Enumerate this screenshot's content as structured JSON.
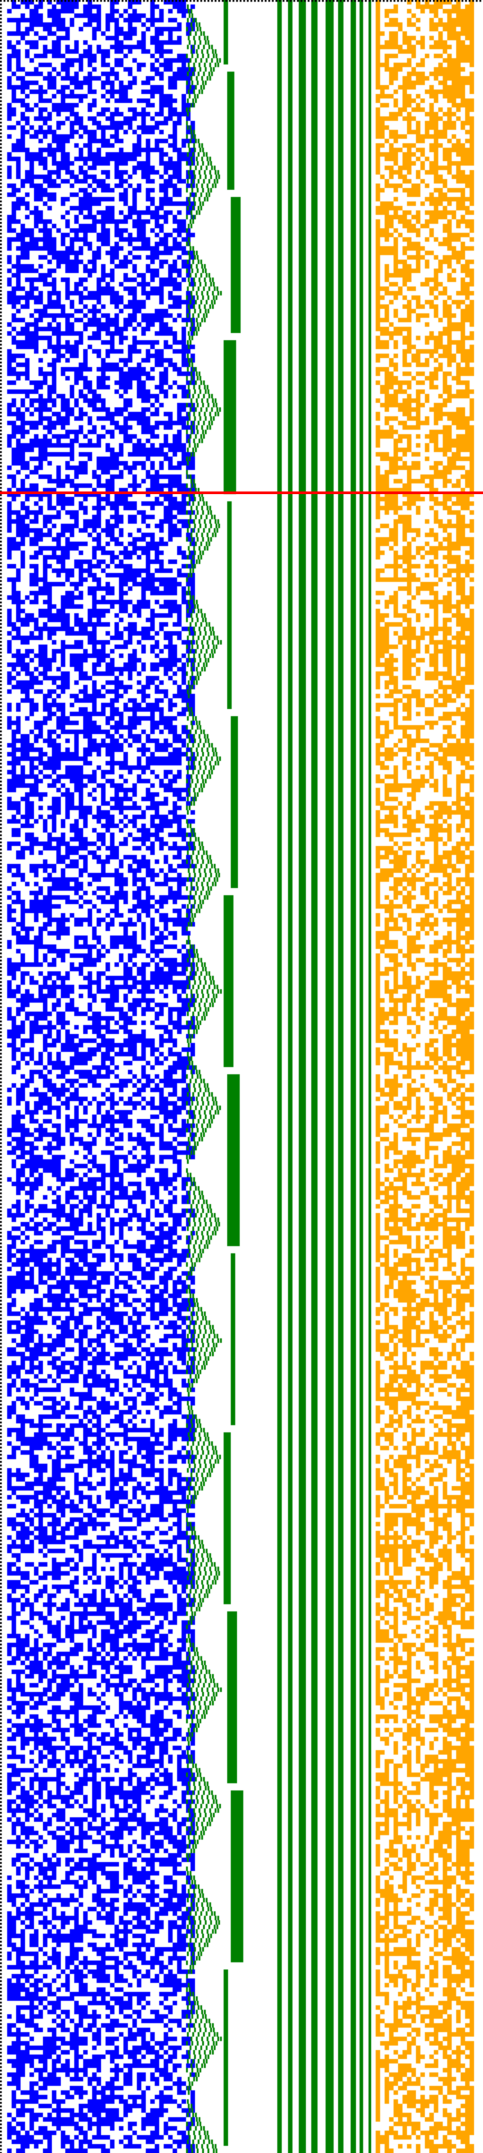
{
  "figure": {
    "kind": "bitmap-visualization",
    "background_color": "#ffffff",
    "border_dot_color": "#000000",
    "colors": {
      "random_region": "#0000ff",
      "staircase_region": "#008000",
      "vertical_bars": "#008000",
      "noise_band": "#ffa500",
      "highlight_line": "#ff0000"
    },
    "vertical_bar_count": 9,
    "has_top_dotted_border": true,
    "has_left_dotted_border": true,
    "has_red_highlight_line": true
  }
}
